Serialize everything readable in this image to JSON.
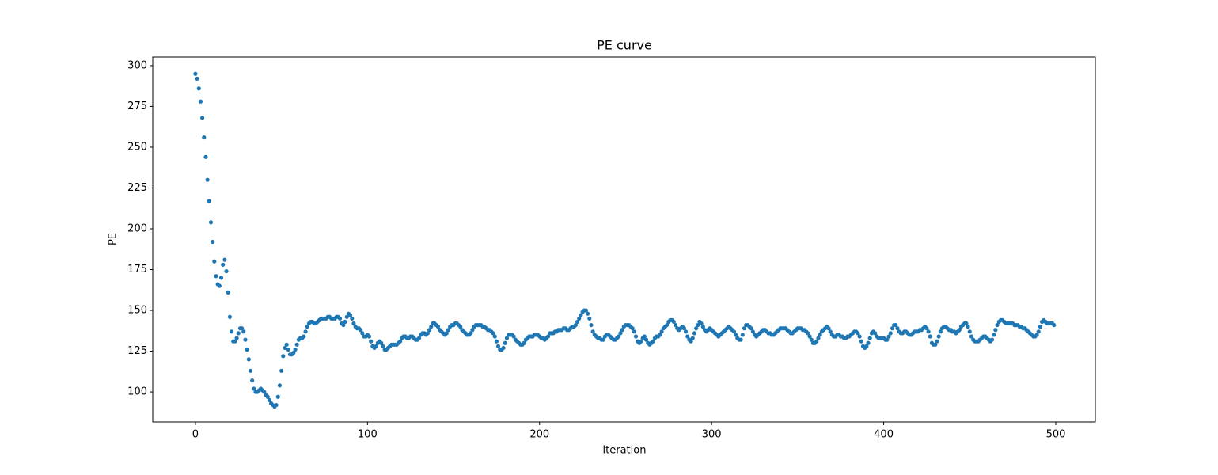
{
  "chart_data": {
    "type": "scatter",
    "title": "PE curve",
    "x_label": "iteration",
    "y_label": "PE",
    "color": "#1f77b4",
    "xlim": [
      -24.8,
      523
    ],
    "ylim": [
      81.6,
      305.3
    ],
    "xticks": [
      0,
      100,
      200,
      300,
      400,
      500
    ],
    "yticks": [
      100,
      125,
      150,
      175,
      200,
      225,
      250,
      275,
      300
    ],
    "x": [
      0,
      1,
      2,
      3,
      4,
      5,
      6,
      7,
      8,
      9,
      10,
      11,
      12,
      13,
      14,
      15,
      16,
      17,
      18,
      19,
      20,
      21,
      22,
      23,
      24,
      25,
      26,
      27,
      28,
      29,
      30,
      31,
      32,
      33,
      34,
      35,
      36,
      37,
      38,
      39,
      40,
      41,
      42,
      43,
      44,
      45,
      46,
      47,
      48,
      49,
      50,
      51,
      52,
      53,
      54,
      55,
      56,
      57,
      58,
      59,
      60,
      61,
      62,
      63,
      64,
      65,
      66,
      67,
      68,
      69,
      70,
      71,
      72,
      73,
      74,
      75,
      76,
      77,
      78,
      79,
      80,
      81,
      82,
      83,
      84,
      85,
      86,
      87,
      88,
      89,
      90,
      91,
      92,
      93,
      94,
      95,
      96,
      97,
      98,
      99,
      100,
      101,
      102,
      103,
      104,
      105,
      106,
      107,
      108,
      109,
      110,
      111,
      112,
      113,
      114,
      115,
      116,
      117,
      118,
      119,
      120,
      121,
      122,
      123,
      124,
      125,
      126,
      127,
      128,
      129,
      130,
      131,
      132,
      133,
      134,
      135,
      136,
      137,
      138,
      139,
      140,
      141,
      142,
      143,
      144,
      145,
      146,
      147,
      148,
      149,
      150,
      151,
      152,
      153,
      154,
      155,
      156,
      157,
      158,
      159,
      160,
      161,
      162,
      163,
      164,
      165,
      166,
      167,
      168,
      169,
      170,
      171,
      172,
      173,
      174,
      175,
      176,
      177,
      178,
      179,
      180,
      181,
      182,
      183,
      184,
      185,
      186,
      187,
      188,
      189,
      190,
      191,
      192,
      193,
      194,
      195,
      196,
      197,
      198,
      199,
      200,
      201,
      202,
      203,
      204,
      205,
      206,
      207,
      208,
      209,
      210,
      211,
      212,
      213,
      214,
      215,
      216,
      217,
      218,
      219,
      220,
      221,
      222,
      223,
      224,
      225,
      226,
      227,
      228,
      229,
      230,
      231,
      232,
      233,
      234,
      235,
      236,
      237,
      238,
      239,
      240,
      241,
      242,
      243,
      244,
      245,
      246,
      247,
      248,
      249,
      250,
      251,
      252,
      253,
      254,
      255,
      256,
      257,
      258,
      259,
      260,
      261,
      262,
      263,
      264,
      265,
      266,
      267,
      268,
      269,
      270,
      271,
      272,
      273,
      274,
      275,
      276,
      277,
      278,
      279,
      280,
      281,
      282,
      283,
      284,
      285,
      286,
      287,
      288,
      289,
      290,
      291,
      292,
      293,
      294,
      295,
      296,
      297,
      298,
      299,
      300,
      301,
      302,
      303,
      304,
      305,
      306,
      307,
      308,
      309,
      310,
      311,
      312,
      313,
      314,
      315,
      316,
      317,
      318,
      319,
      320,
      321,
      322,
      323,
      324,
      325,
      326,
      327,
      328,
      329,
      330,
      331,
      332,
      333,
      334,
      335,
      336,
      337,
      338,
      339,
      340,
      341,
      342,
      343,
      344,
      345,
      346,
      347,
      348,
      349,
      350,
      351,
      352,
      353,
      354,
      355,
      356,
      357,
      358,
      359,
      360,
      361,
      362,
      363,
      364,
      365,
      366,
      367,
      368,
      369,
      370,
      371,
      372,
      373,
      374,
      375,
      376,
      377,
      378,
      379,
      380,
      381,
      382,
      383,
      384,
      385,
      386,
      387,
      388,
      389,
      390,
      391,
      392,
      393,
      394,
      395,
      396,
      397,
      398,
      399,
      400,
      401,
      402,
      403,
      404,
      405,
      406,
      407,
      408,
      409,
      410,
      411,
      412,
      413,
      414,
      415,
      416,
      417,
      418,
      419,
      420,
      421,
      422,
      423,
      424,
      425,
      426,
      427,
      428,
      429,
      430,
      431,
      432,
      433,
      434,
      435,
      436,
      437,
      438,
      439,
      440,
      441,
      442,
      443,
      444,
      445,
      446,
      447,
      448,
      449,
      450,
      451,
      452,
      453,
      454,
      455,
      456,
      457,
      458,
      459,
      460,
      461,
      462,
      463,
      464,
      465,
      466,
      467,
      468,
      469,
      470,
      471,
      472,
      473,
      474,
      475,
      476,
      477,
      478,
      479,
      480,
      481,
      482,
      483,
      484,
      485,
      486,
      487,
      488,
      489,
      490,
      491,
      492,
      493,
      494,
      495,
      496,
      497,
      498,
      499
    ],
    "values": [
      295,
      292,
      286,
      278,
      268,
      256,
      244,
      230,
      217,
      204,
      192,
      180,
      171,
      166,
      165,
      170,
      178,
      181,
      174,
      161,
      146,
      137,
      131,
      131,
      133,
      136,
      139,
      139,
      137,
      132,
      126,
      120,
      113,
      107,
      102,
      100,
      100,
      101,
      102,
      101,
      100,
      98,
      97,
      95,
      93,
      92,
      91,
      92,
      97,
      104,
      113,
      122,
      127,
      129,
      126,
      123,
      123,
      124,
      126,
      129,
      132,
      133,
      133,
      134,
      137,
      140,
      142,
      143,
      143,
      142,
      142,
      143,
      144,
      145,
      145,
      145,
      145,
      146,
      146,
      145,
      145,
      145,
      146,
      146,
      145,
      142,
      141,
      143,
      146,
      148,
      147,
      145,
      142,
      140,
      139,
      139,
      138,
      136,
      134,
      134,
      135,
      134,
      131,
      128,
      127,
      128,
      130,
      131,
      130,
      128,
      126,
      126,
      127,
      128,
      129,
      129,
      129,
      129,
      130,
      131,
      133,
      134,
      134,
      133,
      133,
      134,
      134,
      133,
      132,
      132,
      133,
      135,
      136,
      136,
      135,
      136,
      138,
      140,
      142,
      142,
      141,
      140,
      138,
      137,
      136,
      135,
      136,
      138,
      140,
      141,
      141,
      142,
      142,
      141,
      140,
      138,
      137,
      136,
      135,
      135,
      136,
      138,
      140,
      141,
      141,
      141,
      141,
      140,
      140,
      139,
      138,
      138,
      137,
      136,
      134,
      131,
      128,
      126,
      126,
      127,
      130,
      133,
      135,
      135,
      135,
      134,
      132,
      131,
      130,
      129,
      129,
      130,
      132,
      133,
      134,
      134,
      134,
      135,
      135,
      135,
      134,
      133,
      133,
      132,
      133,
      134,
      136,
      136,
      136,
      137,
      137,
      138,
      138,
      138,
      139,
      139,
      138,
      138,
      139,
      140,
      140,
      141,
      143,
      145,
      147,
      149,
      150,
      150,
      148,
      145,
      141,
      137,
      135,
      134,
      133,
      133,
      132,
      132,
      134,
      135,
      135,
      134,
      133,
      132,
      132,
      133,
      134,
      136,
      138,
      140,
      141,
      141,
      141,
      140,
      139,
      137,
      134,
      131,
      130,
      131,
      133,
      134,
      132,
      130,
      129,
      130,
      131,
      133,
      134,
      134,
      135,
      137,
      139,
      140,
      141,
      143,
      144,
      144,
      143,
      141,
      139,
      138,
      139,
      140,
      139,
      137,
      134,
      132,
      131,
      133,
      136,
      139,
      141,
      143,
      142,
      140,
      138,
      137,
      138,
      139,
      138,
      137,
      136,
      135,
      134,
      135,
      136,
      137,
      138,
      139,
      140,
      139,
      138,
      137,
      135,
      133,
      132,
      132,
      135,
      139,
      141,
      141,
      140,
      139,
      137,
      135,
      134,
      135,
      136,
      137,
      138,
      138,
      137,
      136,
      136,
      135,
      135,
      136,
      137,
      138,
      139,
      139,
      139,
      139,
      138,
      137,
      136,
      136,
      137,
      138,
      139,
      139,
      139,
      138,
      138,
      137,
      136,
      134,
      132,
      130,
      130,
      131,
      133,
      135,
      137,
      138,
      139,
      140,
      139,
      137,
      135,
      134,
      134,
      135,
      135,
      134,
      134,
      133,
      133,
      134,
      134,
      135,
      136,
      137,
      137,
      136,
      134,
      131,
      128,
      127,
      128,
      130,
      133,
      136,
      137,
      136,
      134,
      133,
      133,
      133,
      133,
      132,
      132,
      134,
      136,
      139,
      141,
      141,
      139,
      137,
      136,
      136,
      137,
      137,
      136,
      135,
      135,
      136,
      137,
      137,
      137,
      138,
      138,
      139,
      140,
      139,
      137,
      134,
      130,
      129,
      129,
      131,
      134,
      137,
      139,
      140,
      140,
      139,
      138,
      138,
      137,
      137,
      136,
      137,
      138,
      140,
      141,
      142,
      142,
      140,
      137,
      134,
      132,
      131,
      131,
      131,
      132,
      133,
      134,
      134,
      133,
      132,
      131,
      132,
      135,
      138,
      141,
      143,
      144,
      144,
      143,
      142,
      142,
      142,
      142,
      142,
      141,
      141,
      141,
      140,
      140,
      139,
      139,
      138,
      137,
      136,
      135,
      134,
      134,
      135,
      137,
      140,
      143,
      144,
      143,
      142,
      142,
      142,
      142,
      141
    ]
  }
}
